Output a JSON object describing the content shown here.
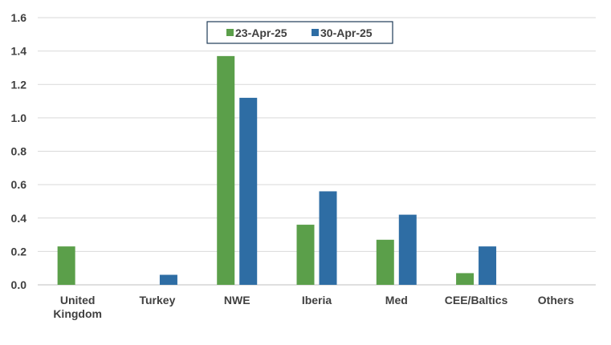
{
  "chart_data": {
    "type": "bar",
    "categories": [
      "United Kingdom",
      "Turkey",
      "NWE",
      "Iberia",
      "Med",
      "CEE/Baltics",
      "Others"
    ],
    "category_lines": [
      [
        "United",
        "Kingdom"
      ],
      [
        "Turkey"
      ],
      [
        "NWE"
      ],
      [
        "Iberia"
      ],
      [
        "Med"
      ],
      [
        "CEE/Baltics"
      ],
      [
        "Others"
      ]
    ],
    "series": [
      {
        "name": "23-Apr-25",
        "color": "#5b9f4a",
        "values": [
          0.23,
          0,
          1.37,
          0.36,
          0.27,
          0.07,
          0
        ]
      },
      {
        "name": "30-Apr-25",
        "color": "#2e6da4",
        "values": [
          0,
          0.06,
          1.12,
          0.56,
          0.42,
          0.23,
          0
        ]
      }
    ],
    "yticks": [
      "0.0",
      "0.2",
      "0.4",
      "0.6",
      "0.8",
      "1.0",
      "1.2",
      "1.4",
      "1.6"
    ],
    "ylim": [
      0,
      1.6
    ],
    "grid": true,
    "legend_position": "top-center",
    "colors": {
      "gridline": "#d9d9d9",
      "axis": "#bfbfbf",
      "text": "#404040",
      "legend_border": "#1f3b57"
    }
  }
}
